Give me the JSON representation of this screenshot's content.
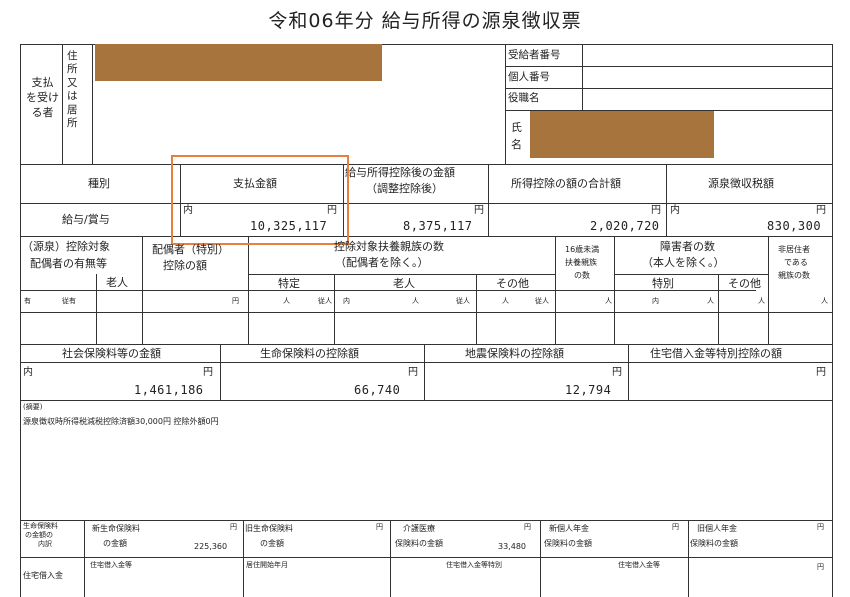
{
  "title": "令和06年分 給与所得の源泉徴収票",
  "payee": {
    "section_label": "支払\nを受け\nる者",
    "address_label": "住\n所\n又\nは\n居\n所",
    "recipient_number_label": "受給者番号",
    "personal_number_label": "個人番号",
    "position_label": "役職名",
    "name_label": "氏\n名"
  },
  "main": {
    "type_label": "種別",
    "paid_amount_label": "支払金額",
    "after_deduction_label": "給与所得控除後の金額",
    "after_deduction_sub": "（調整控除後）",
    "total_deduction_label": "所得控除の額の合計額",
    "withholding_label": "源泉徴収税額",
    "type_value": "給与/賞与",
    "inner_mark": "内",
    "yen": "円",
    "paid_amount": "10,325,117",
    "after_deduction": "8,375,117",
    "total_deduction": "2,020,720",
    "withholding": "830,300"
  },
  "dependents": {
    "spouse_label_1": "（源泉）控除対象",
    "spouse_label_2": "配偶者の有無等",
    "elderly": "老人",
    "special_spouse_1": "配偶者（特別）",
    "special_spouse_2": "控除の額",
    "dependents_1": "控除対象扶養親族の数",
    "dependents_2": "（配偶者を除く。）",
    "specific": "特定",
    "elderly2": "老人",
    "other": "その他",
    "under16_1": "16歳未満",
    "under16_2": "扶養親族",
    "under16_3": "の数",
    "disabled_1": "障害者の数",
    "disabled_2": "（本人を除く。）",
    "special": "特別",
    "other2": "その他",
    "nonres_1": "非居住者",
    "nonres_2": "である",
    "nonres_3": "親族の数",
    "have": "有",
    "subordinate": "従有",
    "person": "人",
    "sub_person": "従人"
  },
  "insurance": {
    "social_label": "社会保険料等の金額",
    "life_label": "生命保険料の控除額",
    "earthquake_label": "地震保険料の控除額",
    "housing_label": "住宅借入金等特別控除の額",
    "social": "1,461,186",
    "life": "66,740",
    "earthquake": "12,794"
  },
  "remarks": {
    "label": "(摘要)",
    "text": "源泉徴収時所得税減税控除済額30,000円 控除外額0円"
  },
  "breakdown": {
    "life_detail_1": "生命保険料",
    "life_detail_2": "の金額の",
    "life_detail_3": "内訳",
    "new_life_1": "新生命保険料",
    "new_life_2": "の金額",
    "new_life": "225,360",
    "old_life_1": "旧生命保険料",
    "old_life_2": "の金額",
    "care_1": "介護医療",
    "care_2": "保険料の金額",
    "care": "33,480",
    "new_pension_1": "新個人年金",
    "new_pension_2": "保険料の金額",
    "old_pension_1": "旧個人年金",
    "old_pension_2": "保険料の金額",
    "housing_loan": "住宅借入金",
    "housing_loan_2": "住宅借入金等",
    "residence_start": "居住開始年月",
    "housing_special": "住宅借入金等特別",
    "housing_loan_3": "住宅借入金等"
  }
}
